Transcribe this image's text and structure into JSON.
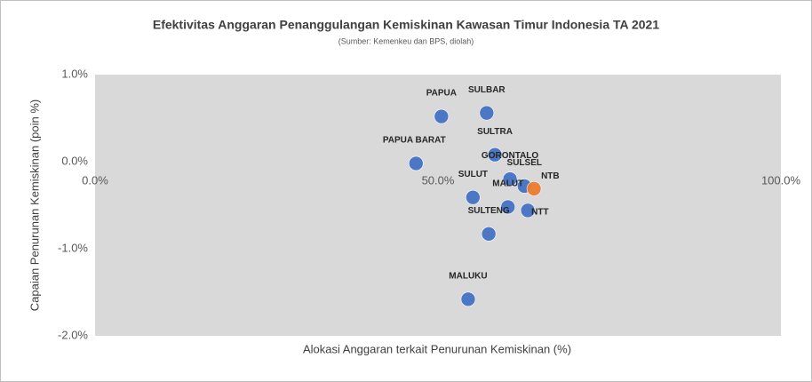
{
  "chart_data": {
    "type": "scatter",
    "title": "Efektivitas Anggaran Penanggulangan Kemiskinan Kawasan Timur Indonesia TA 2021",
    "subtitle": "(Sumber: Kemenkeu dan BPS, diolah)",
    "x_label": "Alokasi Anggaran terkait Penurunan Kemiskinan (%)",
    "y_label": "Capaian Penurunan Kemiskinan (poin %)",
    "labels": [
      "PAPUA",
      "SULBAR",
      "SULTRA",
      "PAPUA BARAT",
      "GORONTALO",
      "SULSEL",
      "NTB",
      "MALUT",
      "NTT",
      "SULUT",
      "SULTENG",
      "MALUKU"
    ],
    "x": [
      50.5,
      57.1,
      58.3,
      46.8,
      60.5,
      62.6,
      64.0,
      60.2,
      63.1,
      55.1,
      57.4,
      54.4
    ],
    "values": [
      0.52,
      0.56,
      0.08,
      -0.02,
      -0.2,
      -0.28,
      -0.31,
      -0.52,
      -0.56,
      -0.41,
      -0.83,
      -1.58
    ],
    "colors": [
      "#4472c4",
      "#4472c4",
      "#4472c4",
      "#4472c4",
      "#4472c4",
      "#4472c4",
      "#ed7d31",
      "#4472c4",
      "#4472c4",
      "#4472c4",
      "#4472c4",
      "#4472c4"
    ],
    "xlim": [
      0,
      100
    ],
    "xticks": [
      {
        "value": 0,
        "label": "0.0%"
      },
      {
        "value": 50,
        "label": "50.0%"
      },
      {
        "value": 100,
        "label": "100.0%"
      }
    ],
    "ylim": [
      -2,
      1
    ],
    "yticks": [
      {
        "value": -2,
        "label": "-2.0%"
      },
      {
        "value": -1,
        "label": "-1.0%"
      },
      {
        "value": 0,
        "label": "0.0%"
      },
      {
        "value": 1,
        "label": "1.0%"
      }
    ],
    "plot_background": "#d9d9d9"
  }
}
